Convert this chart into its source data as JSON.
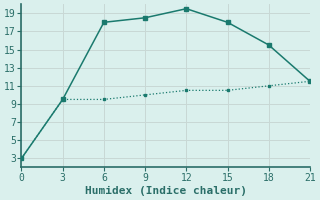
{
  "line1_x": [
    0,
    3,
    6,
    9,
    12,
    15,
    18,
    21
  ],
  "line1_y": [
    3,
    9.5,
    18,
    18.5,
    19.5,
    18,
    15.5,
    11.5
  ],
  "line2_x": [
    0,
    3,
    6,
    9,
    12,
    15,
    18,
    21
  ],
  "line2_y": [
    3,
    9.5,
    9.5,
    10.0,
    10.5,
    10.5,
    11.0,
    11.5
  ],
  "line_color": "#1a7a6e",
  "bg_color": "#daf0ed",
  "grid_color": "#c8d8d5",
  "spine_color": "#2a6e68",
  "xlabel": "Humidex (Indice chaleur)",
  "xlim": [
    0,
    21
  ],
  "ylim": [
    2,
    20
  ],
  "xticks": [
    0,
    3,
    6,
    9,
    12,
    15,
    18,
    21
  ],
  "yticks": [
    3,
    5,
    7,
    9,
    11,
    13,
    15,
    17,
    19
  ],
  "tick_fontsize": 7,
  "xlabel_fontsize": 8
}
